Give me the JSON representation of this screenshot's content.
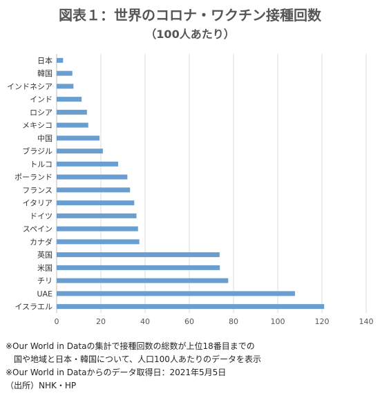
{
  "header": {
    "title": "図表１：世界のコロナ・ワクチン接種回数",
    "subtitle": "（100人あたり）"
  },
  "chart_data": {
    "type": "bar",
    "orientation": "horizontal",
    "categories": [
      "日本",
      "韓国",
      "インドネシア",
      "インド",
      "ロシア",
      "メキシコ",
      "中国",
      "ブラジル",
      "トルコ",
      "ポーランド",
      "フランス",
      "イタリア",
      "ドイツ",
      "スペイン",
      "カナダ",
      "英国",
      "米国",
      "チリ",
      "UAE",
      "イスラエル"
    ],
    "values": [
      2.9,
      7.1,
      7.6,
      11.3,
      13.7,
      14.3,
      19.4,
      20.9,
      27.8,
      32.0,
      33.2,
      35.1,
      36.1,
      36.8,
      37.4,
      73.7,
      73.8,
      77.6,
      107.8,
      121.0
    ],
    "xlim": [
      0,
      140
    ],
    "xticks": [
      0,
      20,
      40,
      60,
      80,
      100,
      120,
      140
    ],
    "bar_color": "#6a9ed1",
    "grid": true
  },
  "notes": {
    "line1": "※Our World in Dataの集計で接種回数の総数が上位18番目までの",
    "line2": "国や地域と日本・韓国について、人口100人あたりのデータを表示",
    "line3": "※Our World in Dataからのデータ取得日：2021年5月5日",
    "line4": "（出所）NHK・HP"
  }
}
